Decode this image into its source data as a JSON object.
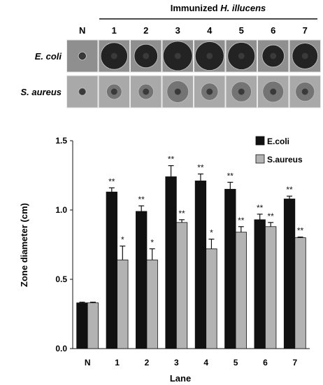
{
  "gel": {
    "header_prefix": "Immunized ",
    "header_species": "H. illucens",
    "lanes": [
      "N",
      "1",
      "2",
      "3",
      "4",
      "5",
      "6",
      "7"
    ],
    "row_labels": [
      "E. coli",
      "S. aureus"
    ]
  },
  "colors": {
    "ecoli_bar": "#111111",
    "saureus_bar": "#b3b3b3",
    "ecoli_plate": "#8f8f8f",
    "saureus_plate": "#a9a9a9"
  },
  "chart_data": {
    "type": "bar",
    "categories": [
      "N",
      "1",
      "2",
      "3",
      "4",
      "5",
      "6",
      "7"
    ],
    "series": [
      {
        "name": "E.coli",
        "values": [
          0.33,
          1.13,
          0.99,
          1.24,
          1.21,
          1.15,
          0.93,
          1.08
        ],
        "errors": [
          0.005,
          0.03,
          0.04,
          0.08,
          0.05,
          0.05,
          0.04,
          0.02
        ],
        "annotations": [
          "",
          "**",
          "**",
          "**",
          "**",
          "**",
          "**",
          "**"
        ]
      },
      {
        "name": "S.aureus",
        "values": [
          0.33,
          0.64,
          0.64,
          0.91,
          0.72,
          0.84,
          0.88,
          0.8
        ],
        "errors": [
          0.005,
          0.1,
          0.08,
          0.02,
          0.07,
          0.04,
          0.03,
          0.005
        ],
        "annotations": [
          "",
          "*",
          "*",
          "**",
          "*",
          "**",
          "**",
          "**"
        ]
      }
    ],
    "title": "",
    "xlabel": "Lane",
    "ylabel": "Zone diameter (cm)",
    "ylim": [
      0.0,
      1.5
    ],
    "yticks": [
      "0.0",
      "0.5",
      "1.0",
      "1.5"
    ],
    "legend_position": "top-right",
    "grid": false
  }
}
